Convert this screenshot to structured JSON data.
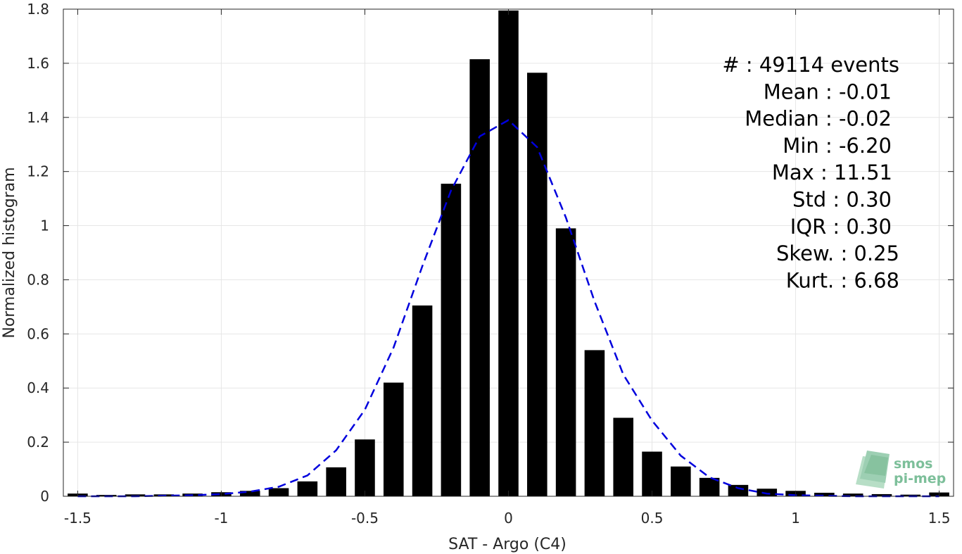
{
  "chart_data": {
    "type": "bar",
    "xlabel": "SAT - Argo (C4)",
    "ylabel": "Normalized histogram",
    "xlim": [
      -1.55,
      1.55
    ],
    "ylim": [
      0,
      1.8
    ],
    "grid": true,
    "xticks": [
      -1.5,
      -1,
      -0.5,
      0,
      0.5,
      1,
      1.5
    ],
    "xtick_labels": [
      "-1.5",
      "-1",
      "-0.5",
      "0",
      "0.5",
      "1",
      "1.5"
    ],
    "yticks": [
      0,
      0.2,
      0.4,
      0.6,
      0.8,
      1,
      1.2,
      1.4,
      1.6,
      1.8
    ],
    "ytick_labels": [
      "0",
      "0.2",
      "0.4",
      "0.6",
      "0.8",
      "1",
      "1.2",
      "1.4",
      "1.6",
      "1.8"
    ],
    "bar_width": 0.07,
    "bar_color": "#000000",
    "bins": [
      -1.5,
      -1.4,
      -1.3,
      -1.2,
      -1.1,
      -1.0,
      -0.9,
      -0.8,
      -0.7,
      -0.6,
      -0.5,
      -0.4,
      -0.3,
      -0.2,
      -0.1,
      0.0,
      0.1,
      0.2,
      0.3,
      0.4,
      0.5,
      0.6,
      0.7,
      0.8,
      0.9,
      1.0,
      1.1,
      1.2,
      1.3,
      1.4,
      1.5
    ],
    "values": [
      0.01,
      0.005,
      0.007,
      0.007,
      0.01,
      0.015,
      0.02,
      0.03,
      0.055,
      0.107,
      0.21,
      0.42,
      0.705,
      1.155,
      1.615,
      1.795,
      1.565,
      0.99,
      0.54,
      0.29,
      0.165,
      0.11,
      0.068,
      0.042,
      0.028,
      0.02,
      0.013,
      0.01,
      0.008,
      0.006,
      0.014
    ],
    "fit": {
      "name": "",
      "color": "#0000dd",
      "style": "dashed",
      "x": [
        -1.5,
        -1.4,
        -1.3,
        -1.2,
        -1.1,
        -1.0,
        -0.9,
        -0.8,
        -0.7,
        -0.6,
        -0.5,
        -0.4,
        -0.3,
        -0.2,
        -0.1,
        0.0,
        0.1,
        0.2,
        0.3,
        0.4,
        0.5,
        0.6,
        0.7,
        0.8,
        0.9,
        1.0,
        1.1,
        1.2,
        1.3,
        1.4,
        1.5
      ],
      "y": [
        0.0,
        0.0,
        0.0,
        0.002,
        0.004,
        0.008,
        0.017,
        0.035,
        0.077,
        0.17,
        0.32,
        0.55,
        0.85,
        1.13,
        1.33,
        1.39,
        1.29,
        1.03,
        0.72,
        0.45,
        0.28,
        0.15,
        0.07,
        0.03,
        0.01,
        0.004,
        0.002,
        0.0,
        0.0,
        0.0,
        0.0
      ]
    },
    "annotations": [
      "#  : 49114 events",
      "Mean : -0.01",
      "Median : -0.02",
      "Min : -6.20",
      "Max : 11.51",
      "Std : 0.30",
      "IQR : 0.30",
      "Skew. : 0.25",
      "Kurt. : 6.68"
    ]
  },
  "logo": {
    "line1": "smos",
    "line2": "pi-mep",
    "color": "#7dbf9a"
  }
}
